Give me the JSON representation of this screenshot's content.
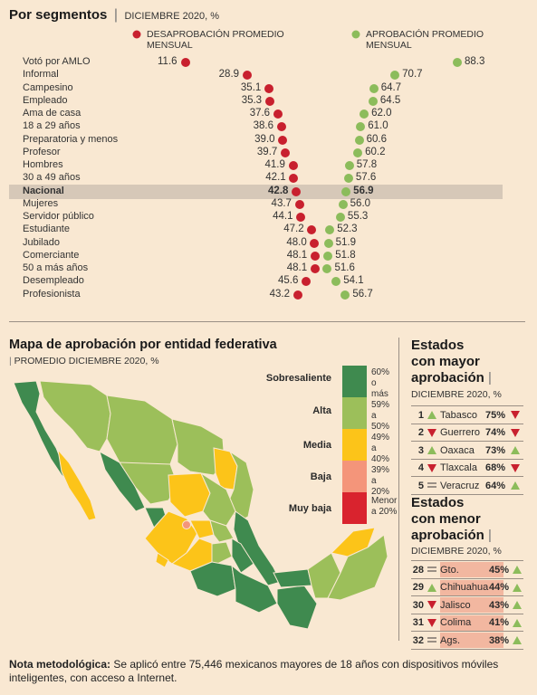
{
  "segments": {
    "title": "Por segmentos",
    "subtitle": "DICIEMBRE 2020, %",
    "disapproval_label": [
      "DESAPROBACIÓN PROMEDIO",
      "MENSUAL"
    ],
    "approval_label": [
      "APROBACIÓN PROMEDIO",
      "MENSUAL"
    ]
  },
  "chart_data": {
    "type": "scatter",
    "categories": [
      "Votó por AMLO",
      "Informal",
      "Campesino",
      "Empleado",
      "Ama de casa",
      "18 a 29 años",
      "Preparatoria y menos",
      "Profesor",
      "Hombres",
      "30 a 49 años",
      "Nacional",
      "Mujeres",
      "Servidor público",
      "Estudiante",
      "Jubilado",
      "Comerciante",
      "50 a más años",
      "Desempleado",
      "Profesionista"
    ],
    "series": [
      {
        "name": "DESAPROBACIÓN PROMEDIO MENSUAL",
        "values": [
          11.6,
          28.9,
          35.1,
          35.3,
          37.6,
          38.6,
          39.0,
          39.7,
          41.9,
          42.1,
          42.8,
          43.7,
          44.1,
          47.2,
          48.0,
          48.1,
          48.1,
          45.6,
          43.2
        ]
      },
      {
        "name": "APROBACIÓN PROMEDIO MENSUAL",
        "values": [
          88.3,
          70.7,
          64.7,
          64.5,
          62.0,
          61.0,
          60.6,
          60.2,
          57.8,
          57.6,
          56.9,
          56.0,
          55.3,
          52.3,
          51.9,
          51.8,
          51.6,
          54.1,
          56.7
        ]
      }
    ],
    "highlight": "Nacional"
  },
  "labels_text": {
    "dis": [
      "11.6",
      "28.9",
      "35.1",
      "35.3",
      "37.6",
      "38.6",
      "39.0",
      "39.7",
      "41.9",
      "42.1",
      "42.8",
      "43.7",
      "44.1",
      "47.2",
      "48.0",
      "48.1",
      "48.1",
      "45.6",
      "43.2"
    ],
    "app": [
      "88.3",
      "70.7",
      "64.7",
      "64.5",
      "62.0",
      "61.0",
      "60.6",
      "60.2",
      "57.8",
      "57.6",
      "56.9",
      "56.0",
      "55.3",
      "52.3",
      "51.9",
      "51.8",
      "51.6",
      "54.1",
      "56.7"
    ]
  },
  "map": {
    "title": "Mapa de aprobación por entidad federativa",
    "subtitle": "PROMEDIO DICIEMBRE 2020, %",
    "legend": [
      {
        "label": "Sobresaliente",
        "range": [
          "60%",
          "o más"
        ],
        "color": "#3f8a4f"
      },
      {
        "label": "Alta",
        "range": [
          "59%",
          "a 50%"
        ],
        "color": "#9cbf5a"
      },
      {
        "label": "Media",
        "range": [
          "49%",
          "a 40%"
        ],
        "color": "#fcc419"
      },
      {
        "label": "Baja",
        "range": [
          "39%",
          "a 20%"
        ],
        "color": "#f4957a"
      },
      {
        "label": "Muy baja",
        "range": [
          "Menor",
          "a 20%"
        ],
        "color": "#d9232e"
      }
    ]
  },
  "top_states": {
    "title": [
      "Estados",
      "con mayor",
      "aprobación"
    ],
    "subtitle": "DICIEMBRE 2020, %",
    "rows": [
      {
        "rank": "1",
        "name": "Tabasco",
        "pct": "75%",
        "trend_left": "up",
        "trend_right": "down"
      },
      {
        "rank": "2",
        "name": "Guerrero",
        "pct": "74%",
        "trend_left": "down",
        "trend_right": "down"
      },
      {
        "rank": "3",
        "name": "Oaxaca",
        "pct": "73%",
        "trend_left": "up",
        "trend_right": "up"
      },
      {
        "rank": "4",
        "name": "Tlaxcala",
        "pct": "68%",
        "trend_left": "down",
        "trend_right": "down"
      },
      {
        "rank": "5",
        "name": "Veracruz",
        "pct": "64%",
        "trend_left": "equal",
        "trend_right": "up"
      }
    ]
  },
  "bottom_states": {
    "title": [
      "Estados",
      "con menor",
      "aprobación"
    ],
    "subtitle": "DICIEMBRE 2020, %",
    "rows": [
      {
        "rank": "28",
        "name": "Gto.",
        "pct": "45%",
        "trend_left": "equal",
        "trend_right": "up"
      },
      {
        "rank": "29",
        "name": "Chihuahua",
        "pct": "44%",
        "trend_left": "up",
        "trend_right": "up"
      },
      {
        "rank": "30",
        "name": "Jalisco",
        "pct": "43%",
        "trend_left": "down",
        "trend_right": "up"
      },
      {
        "rank": "31",
        "name": "Colima",
        "pct": "41%",
        "trend_left": "down",
        "trend_right": "up"
      },
      {
        "rank": "32",
        "name": "Ags.",
        "pct": "38%",
        "trend_left": "equal",
        "trend_right": "up"
      }
    ]
  },
  "note": {
    "bold": "Nota metodológica:",
    "text": " Se aplicó entre 75,446 mexicanos mayores de 18 años con dispositivos móviles inteligentes, con acceso a Internet."
  },
  "colors": {
    "disapproval": "#c8202e",
    "approval": "#8cbc5b",
    "highlight": "#d6c8b8",
    "up": "#8cbc5b",
    "down": "#c8202e",
    "equal": "#9a8f85",
    "bottom_bg": "#f2b7a0"
  }
}
